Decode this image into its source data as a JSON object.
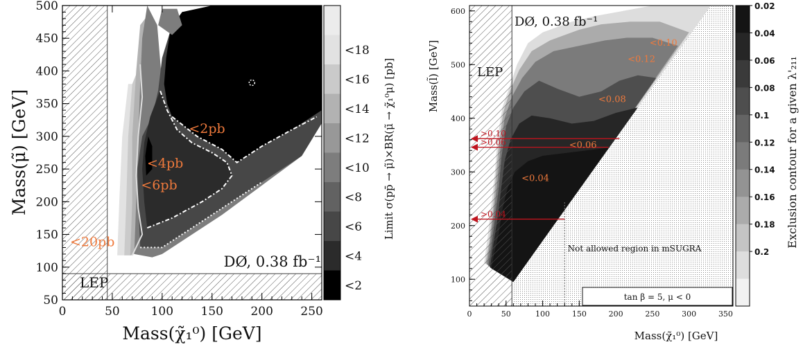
{
  "chart_data": [
    {
      "type": "heatmap",
      "xlabel": "Mass(χ̃₁⁰) [GeV]",
      "ylabel": "Mass(μ̃) [GeV]",
      "colorbar_label": "Limit σ(pp̄ → μ̃)×BR(μ̃ → χ̃₁⁰μ) [pb]",
      "xlim": [
        0,
        260
      ],
      "ylim": [
        50,
        500
      ],
      "xticks": [
        "0",
        "50",
        "100",
        "150",
        "200",
        "250"
      ],
      "yticks": [
        "50",
        "100",
        "150",
        "200",
        "250",
        "300",
        "350",
        "400",
        "450",
        "500"
      ],
      "colorbar": {
        "levels": [
          "<2",
          "<4",
          "<6",
          "<8",
          "<10",
          "<12",
          "<14",
          "<16",
          "<18"
        ],
        "colors": [
          "#000000",
          "#2b2b2b",
          "#474747",
          "#626262",
          "#7d7d7d",
          "#989898",
          "#b2b2b2",
          "#cacaca",
          "#e2e2e2"
        ]
      },
      "excluded_region_label": "LEP",
      "experiment_label": "DØ, 0.38 fb⁻¹",
      "contour_labels": [
        {
          "text": "<2pb",
          "x": 145,
          "y": 305
        },
        {
          "text": "<4pb",
          "x": 103,
          "y": 252
        },
        {
          "text": "<6pb",
          "x": 97,
          "y": 219
        },
        {
          "text": "<20pb",
          "x": 30,
          "y": 132
        }
      ],
      "annotation_color": "#f07a3c",
      "lep_bound": {
        "x_max": 45,
        "y_max": 90
      }
    },
    {
      "type": "heatmap",
      "xlabel": "Mass(χ̃₁⁰) [GeV]",
      "ylabel": "Mass(l̃) [GeV]",
      "colorbar_label": "Exclusion contour for a given λ'₂₁₁",
      "xlim": [
        0,
        360
      ],
      "ylim": [
        50,
        610
      ],
      "xticks": [
        "0",
        "50",
        "100",
        "150",
        "200",
        "250",
        "300",
        "350"
      ],
      "yticks": [
        "100",
        "200",
        "300",
        "400",
        "500",
        "600"
      ],
      "colorbar": {
        "levels": [
          "0.02",
          "0.04",
          "0.06",
          "0.08",
          "0.1",
          "0.12",
          "0.14",
          "0.16",
          "0.18",
          "0.2"
        ],
        "colors": [
          "#141414",
          "#262626",
          "#3a3a3a",
          "#4e4e4e",
          "#646464",
          "#7b7b7b",
          "#939393",
          "#ababab",
          "#c4c4c4",
          "#dddddd"
        ]
      },
      "excluded_region_label": "LEP",
      "experiment_label": "DØ, 0.38 fb⁻¹",
      "forbidden_region_label": "Not allowed region in mSUGRA",
      "parameter_box": "tan β = 5, μ < 0",
      "contour_labels": [
        {
          "text": "<0.10",
          "x": 265,
          "y": 535
        },
        {
          "text": "<0.12",
          "x": 235,
          "y": 505
        },
        {
          "text": "<0.08",
          "x": 195,
          "y": 430
        },
        {
          "text": "<0.06",
          "x": 155,
          "y": 345
        },
        {
          "text": "<0.04",
          "x": 90,
          "y": 283
        }
      ],
      "arrow_labels": [
        {
          "text": ">0.10",
          "y": 362,
          "x_end": 205
        },
        {
          "text": ">0.06",
          "y": 346,
          "x_end": 190
        },
        {
          "text": ">0.04",
          "y": 212,
          "x_end": 130
        }
      ],
      "annotation_color": "#f07a3c",
      "arrow_color": "#c0141e",
      "lep_bound": {
        "x_max": 58
      }
    }
  ]
}
